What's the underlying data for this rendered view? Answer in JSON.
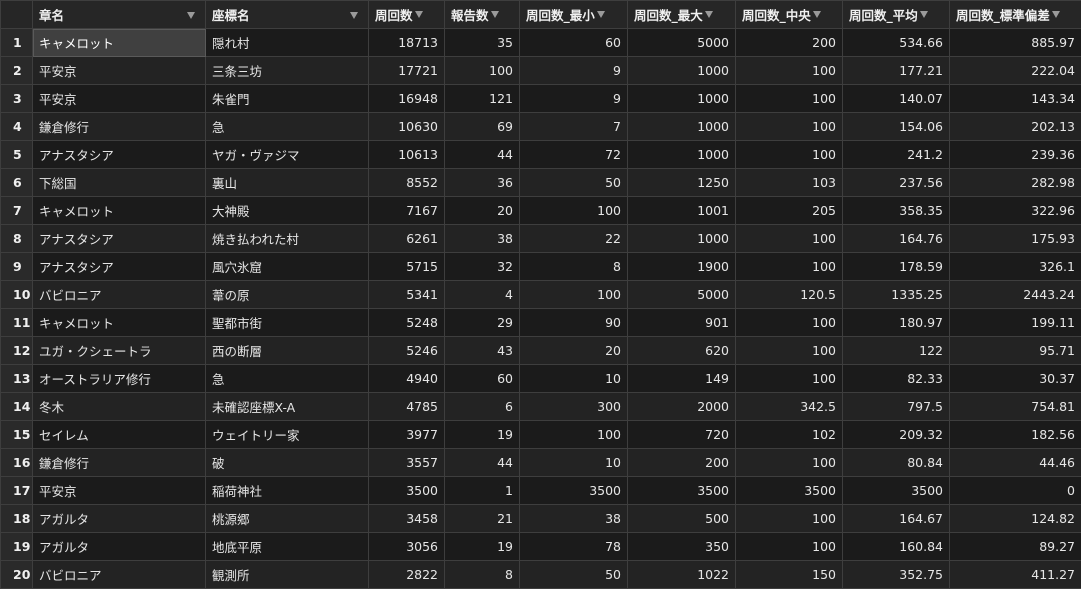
{
  "columns": [
    "章名",
    "座標名",
    "周回数",
    "報告数",
    "周回数_最小",
    "周回数_最大",
    "周回数_中央",
    "周回数_平均",
    "周回数_標準偏差"
  ],
  "rows": [
    {
      "idx": "1",
      "cells": [
        "キャメロット",
        "隠れ村",
        "18713",
        "35",
        "60",
        "5000",
        "200",
        "534.66",
        "885.97"
      ]
    },
    {
      "idx": "2",
      "cells": [
        "平安京",
        "三条三坊",
        "17721",
        "100",
        "9",
        "1000",
        "100",
        "177.21",
        "222.04"
      ]
    },
    {
      "idx": "3",
      "cells": [
        "平安京",
        "朱雀門",
        "16948",
        "121",
        "9",
        "1000",
        "100",
        "140.07",
        "143.34"
      ]
    },
    {
      "idx": "4",
      "cells": [
        "鎌倉修行",
        "急",
        "10630",
        "69",
        "7",
        "1000",
        "100",
        "154.06",
        "202.13"
      ]
    },
    {
      "idx": "5",
      "cells": [
        "アナスタシア",
        "ヤガ・ヴァジマ",
        "10613",
        "44",
        "72",
        "1000",
        "100",
        "241.2",
        "239.36"
      ]
    },
    {
      "idx": "6",
      "cells": [
        "下総国",
        "裏山",
        "8552",
        "36",
        "50",
        "1250",
        "103",
        "237.56",
        "282.98"
      ]
    },
    {
      "idx": "7",
      "cells": [
        "キャメロット",
        "大神殿",
        "7167",
        "20",
        "100",
        "1001",
        "205",
        "358.35",
        "322.96"
      ]
    },
    {
      "idx": "8",
      "cells": [
        "アナスタシア",
        "焼き払われた村",
        "6261",
        "38",
        "22",
        "1000",
        "100",
        "164.76",
        "175.93"
      ]
    },
    {
      "idx": "9",
      "cells": [
        "アナスタシア",
        "風穴氷窟",
        "5715",
        "32",
        "8",
        "1900",
        "100",
        "178.59",
        "326.1"
      ]
    },
    {
      "idx": "10",
      "cells": [
        "バビロニア",
        "葦の原",
        "5341",
        "4",
        "100",
        "5000",
        "120.5",
        "1335.25",
        "2443.24"
      ]
    },
    {
      "idx": "11",
      "cells": [
        "キャメロット",
        "聖都市街",
        "5248",
        "29",
        "90",
        "901",
        "100",
        "180.97",
        "199.11"
      ]
    },
    {
      "idx": "12",
      "cells": [
        "ユガ・クシェートラ",
        "西の断層",
        "5246",
        "43",
        "20",
        "620",
        "100",
        "122",
        "95.71"
      ]
    },
    {
      "idx": "13",
      "cells": [
        "オーストラリア修行",
        "急",
        "4940",
        "60",
        "10",
        "149",
        "100",
        "82.33",
        "30.37"
      ]
    },
    {
      "idx": "14",
      "cells": [
        "冬木",
        "未確認座標X-A",
        "4785",
        "6",
        "300",
        "2000",
        "342.5",
        "797.5",
        "754.81"
      ]
    },
    {
      "idx": "15",
      "cells": [
        "セイレム",
        "ウェイトリー家",
        "3977",
        "19",
        "100",
        "720",
        "102",
        "209.32",
        "182.56"
      ]
    },
    {
      "idx": "16",
      "cells": [
        "鎌倉修行",
        "破",
        "3557",
        "44",
        "10",
        "200",
        "100",
        "80.84",
        "44.46"
      ]
    },
    {
      "idx": "17",
      "cells": [
        "平安京",
        "稲荷神社",
        "3500",
        "1",
        "3500",
        "3500",
        "3500",
        "3500",
        "0"
      ]
    },
    {
      "idx": "18",
      "cells": [
        "アガルタ",
        "桃源郷",
        "3458",
        "21",
        "38",
        "500",
        "100",
        "164.67",
        "124.82"
      ]
    },
    {
      "idx": "19",
      "cells": [
        "アガルタ",
        "地底平原",
        "3056",
        "19",
        "78",
        "350",
        "100",
        "160.84",
        "89.27"
      ]
    },
    {
      "idx": "20",
      "cells": [
        "バビロニア",
        "観測所",
        "2822",
        "8",
        "50",
        "1022",
        "150",
        "352.75",
        "411.27"
      ]
    }
  ]
}
